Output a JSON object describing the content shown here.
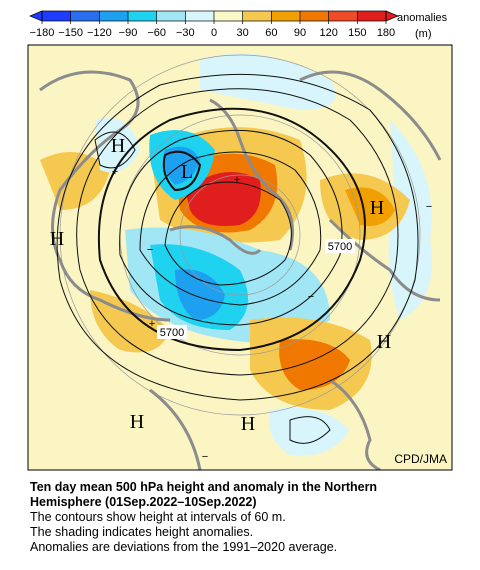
{
  "colorbar": {
    "ticks": [
      {
        "value": -180,
        "label": "−180"
      },
      {
        "value": -150,
        "label": "−150"
      },
      {
        "value": -120,
        "label": "−120"
      },
      {
        "value": -90,
        "label": "−90"
      },
      {
        "value": -60,
        "label": "−60"
      },
      {
        "value": -30,
        "label": "−30"
      },
      0,
      30,
      60,
      90,
      120,
      150,
      180
    ],
    "colors": [
      "#1e3cff",
      "#2a6ef0",
      "#1ea0f0",
      "#1ed2f0",
      "#a0e6f5",
      "#d7f5fa",
      "#fafac8",
      "#f5c850",
      "#f0a000",
      "#f07800",
      "#f04b28",
      "#e11e1e"
    ],
    "label": "anomalies",
    "unit": "(m)"
  },
  "map": {
    "labels": [
      "H",
      "L",
      "H",
      "H",
      "H",
      "H",
      "H",
      "5700",
      "5700",
      "+",
      "+",
      "+",
      "−",
      "−",
      "−",
      "−"
    ],
    "credit": "CPD/JMA"
  },
  "caption": {
    "title": [
      "Ten day mean 500 hPa height and anomaly in the Northern",
      "Hemisphere (01Sep.2022–10Sep.2022)"
    ],
    "lines": [
      "The contours show height at intervals of 60 m.",
      "The shading indicates height anomalies.",
      "Anomalies are deviations from the 1991–2020 average."
    ]
  }
}
